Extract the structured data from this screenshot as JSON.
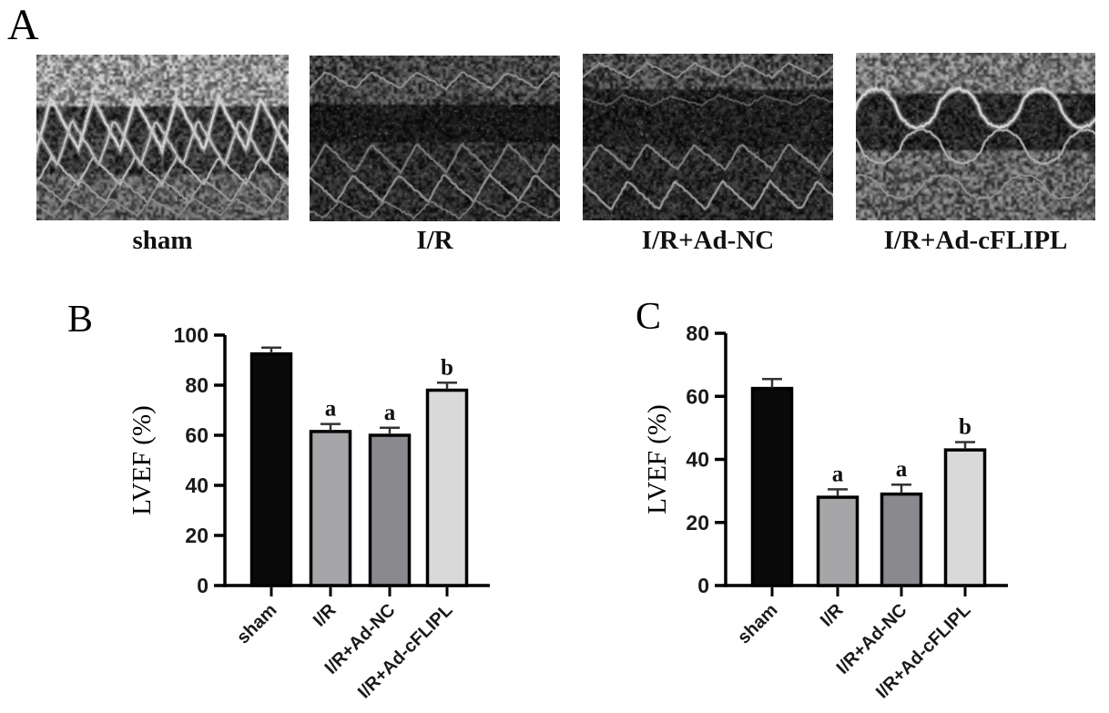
{
  "panels": {
    "a": {
      "letter": "A",
      "images": [
        {
          "label": "sham"
        },
        {
          "label": "I/R"
        },
        {
          "label": "I/R+Ad-NC"
        },
        {
          "label": "I/R+Ad-cFLIPL"
        }
      ]
    },
    "b": {
      "letter": "B"
    },
    "c": {
      "letter": "C"
    }
  },
  "colors": {
    "bar_sham": "#0a0a0a",
    "bar_ir": "#a6a6a9",
    "bar_ad_nc": "#8a8a8e",
    "bar_ad_cflipl": "#d9d9d9",
    "axis": "#000000"
  },
  "chart_data": [
    {
      "id": "B",
      "type": "bar",
      "title": "",
      "categories": [
        "sham",
        "I/R",
        "I/R+Ad-NC",
        "I/R+Ad-cFLIPL"
      ],
      "values": [
        92.5,
        61.5,
        60,
        78
      ],
      "errors": [
        2.5,
        3,
        3,
        3
      ],
      "annotations": [
        "",
        "a",
        "a",
        "b"
      ],
      "bar_colors": [
        "#0a0a0a",
        "#a6a6a9",
        "#8a8a8e",
        "#d9d9d9"
      ],
      "xlabel": "",
      "ylabel": "LVEF（%）",
      "ylim": [
        0,
        100
      ],
      "yticks": [
        0,
        20,
        40,
        60,
        80,
        100
      ],
      "grid": false,
      "legend": null
    },
    {
      "id": "C",
      "type": "bar",
      "title": "",
      "categories": [
        "sham",
        "I/R",
        "I/R+Ad-NC",
        "I/R+Ad-cFLIPL"
      ],
      "values": [
        62.5,
        28,
        29,
        43
      ],
      "errors": [
        3,
        2.5,
        3,
        2.5
      ],
      "annotations": [
        "",
        "a",
        "a",
        "b"
      ],
      "bar_colors": [
        "#0a0a0a",
        "#a6a6a9",
        "#8a8a8e",
        "#d9d9d9"
      ],
      "xlabel": "",
      "ylabel": "LVEF（%）",
      "ylim": [
        0,
        80
      ],
      "yticks": [
        0,
        20,
        40,
        60,
        80
      ],
      "grid": false,
      "legend": null
    }
  ]
}
